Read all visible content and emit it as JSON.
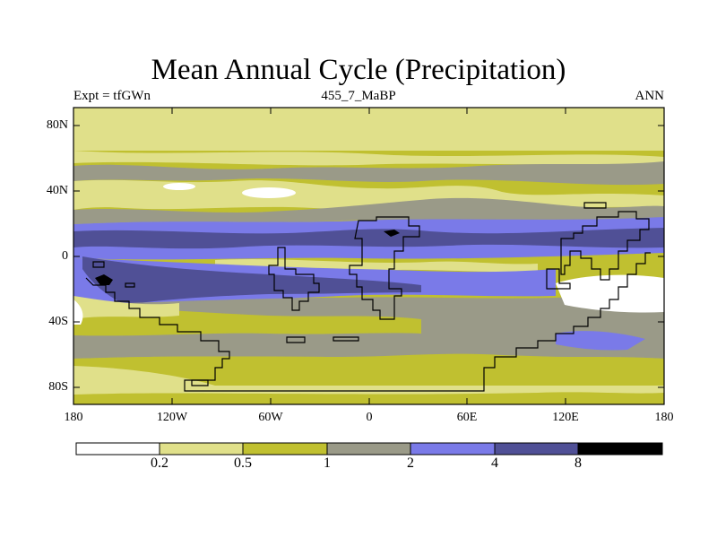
{
  "title": "Mean Annual Cycle (Precipitation)",
  "subtitle_left": "Expt = tfGWn",
  "subtitle_center": "455_7_MaBP",
  "subtitle_right": "ANN",
  "latitude_ticks": [
    "80N",
    "40N",
    "0",
    "40S",
    "80S"
  ],
  "longitude_ticks": [
    "180",
    "120W",
    "60W",
    "0",
    "60E",
    "120E",
    "180"
  ],
  "colorbar": {
    "labels": [
      "0.2",
      "0.5",
      "1",
      "2",
      "4",
      "8"
    ],
    "colors": [
      "#ffffff",
      "#e0e08a",
      "#c0c030",
      "#9a9a88",
      "#7a7ae8",
      "#505096",
      "#000000"
    ]
  },
  "map_colors": {
    "white": "#ffffff",
    "light_yellow": "#e0e08a",
    "olive": "#c0c030",
    "gray": "#9a9a88",
    "blue": "#7a7ae8",
    "dark_blue": "#505096",
    "black": "#000000"
  }
}
